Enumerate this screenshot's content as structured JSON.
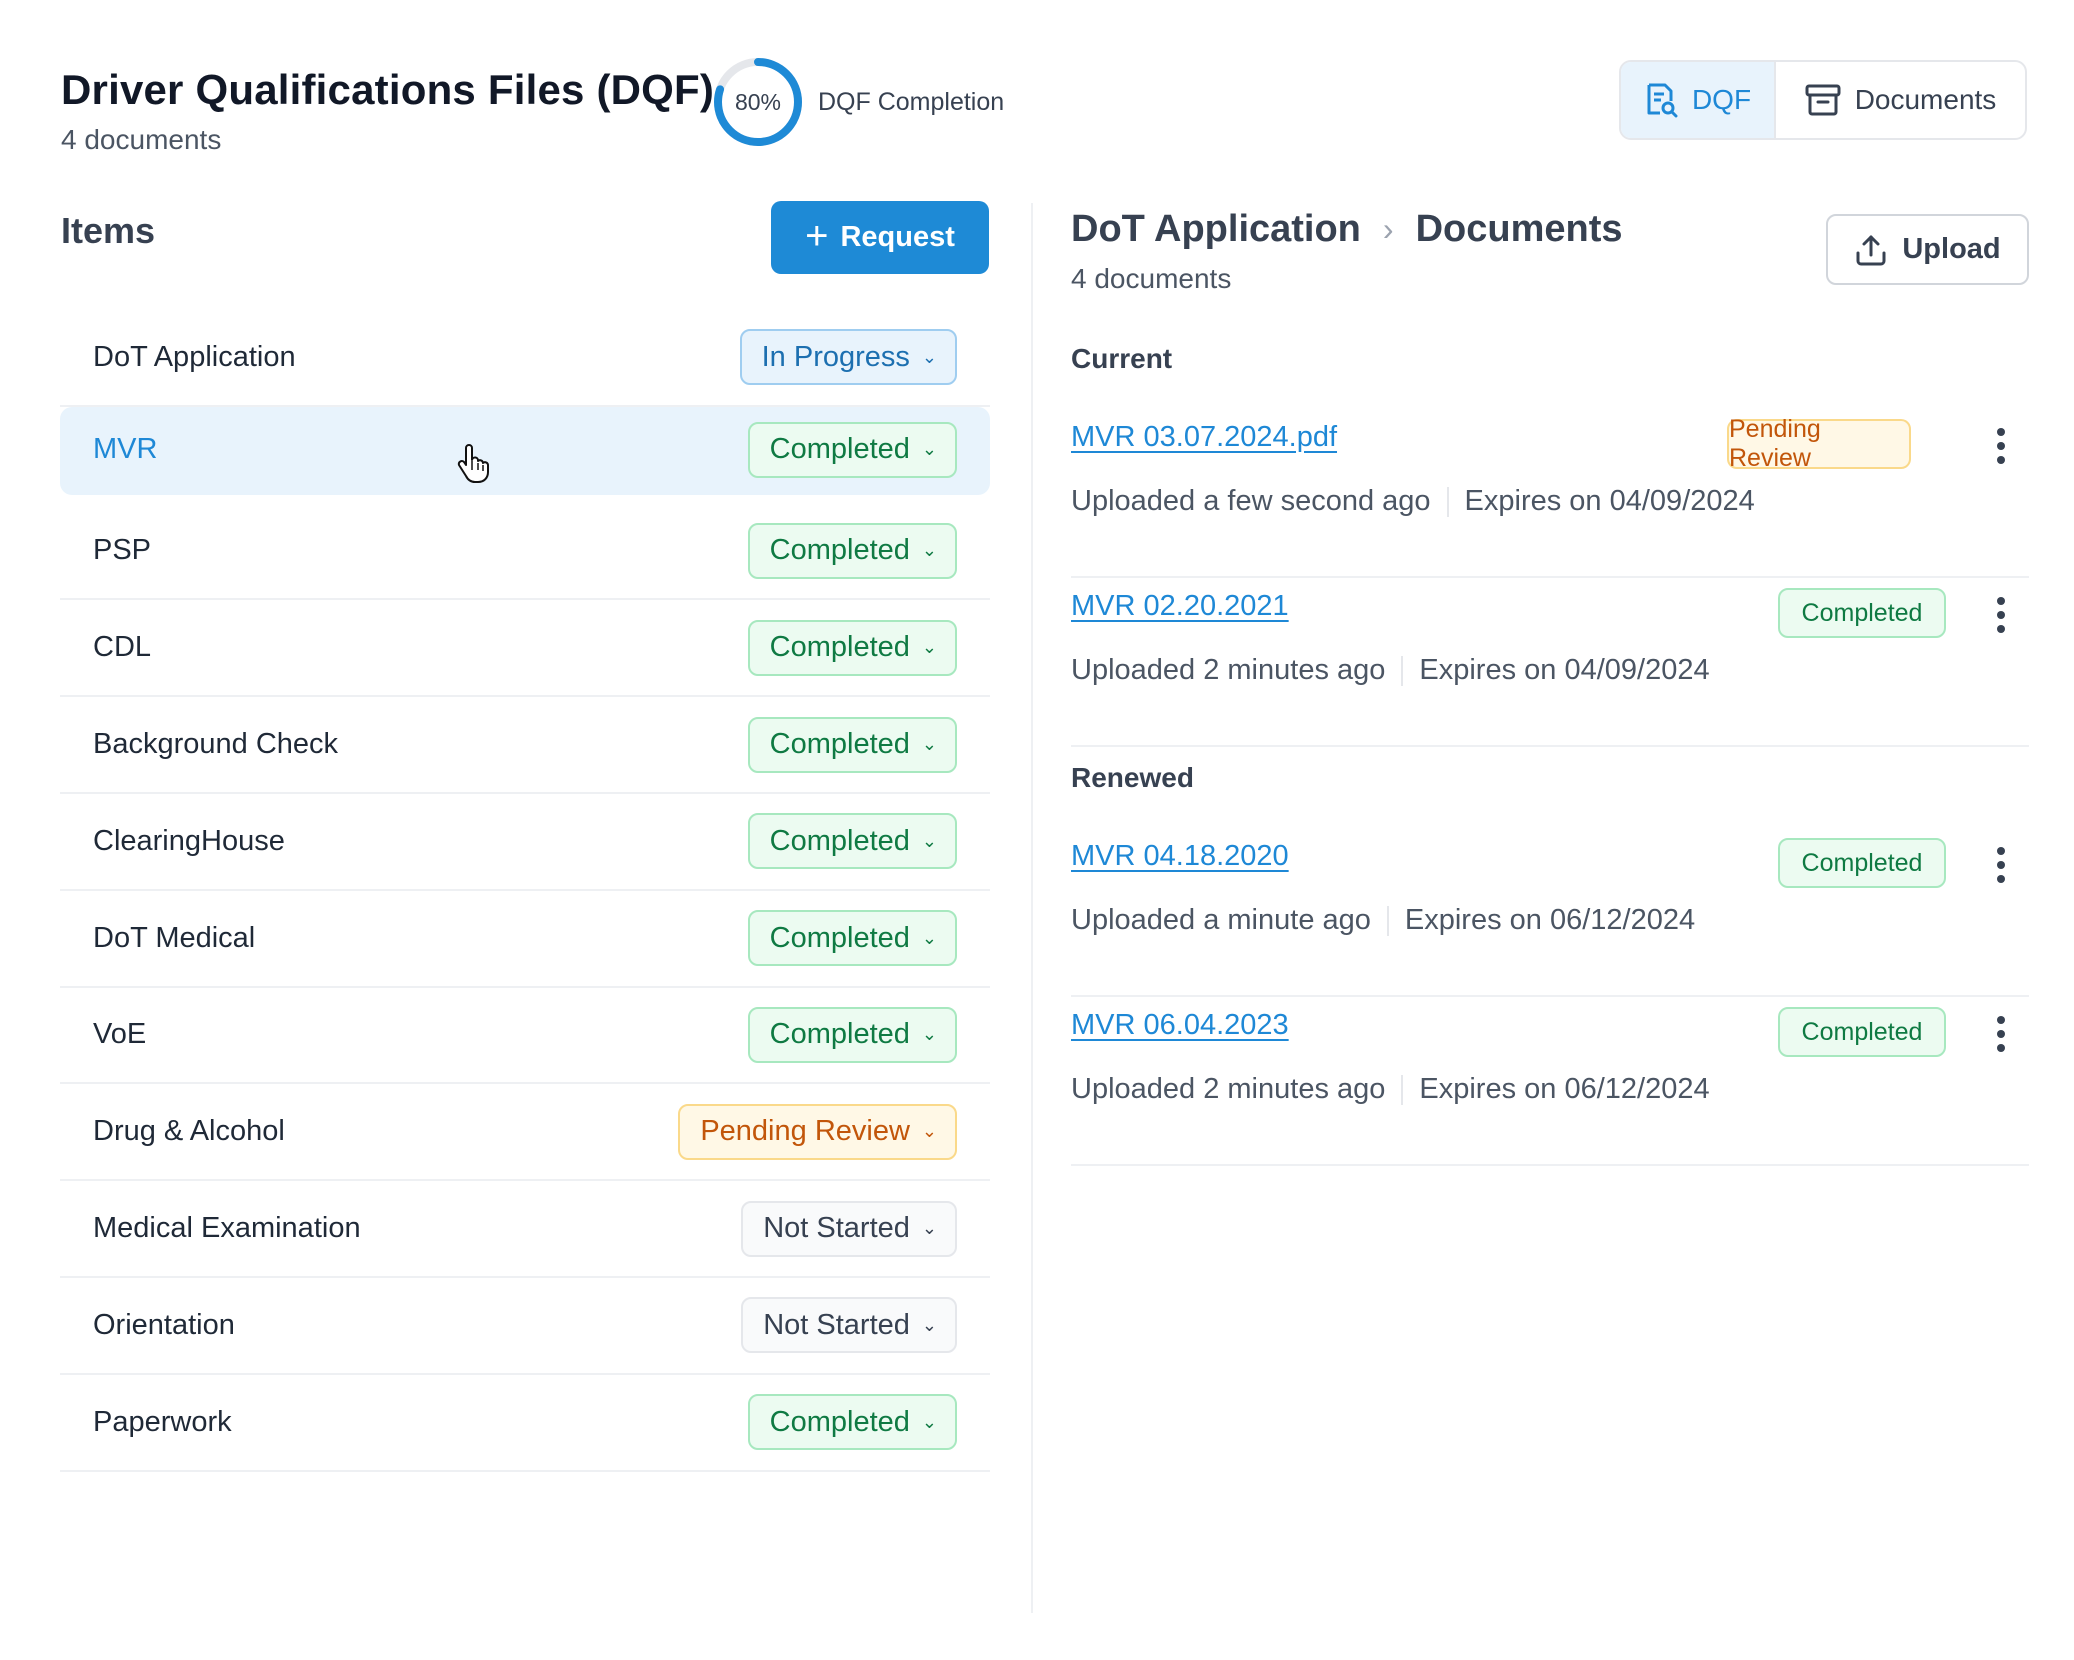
{
  "header": {
    "title": "Driver Qualifications Files (DQF)",
    "subtitle": "4 documents",
    "completion_percent": "80%",
    "completion_value": 0.8,
    "completion_label": "DQF Completion"
  },
  "view_toggle": {
    "dqf_label": "DQF",
    "documents_label": "Documents",
    "active": "DQF"
  },
  "items_panel": {
    "title": "Items",
    "request_label": "Request",
    "items": [
      {
        "name": "DoT Application",
        "status": "In Progress"
      },
      {
        "name": "MVR",
        "status": "Completed"
      },
      {
        "name": "PSP",
        "status": "Completed"
      },
      {
        "name": "CDL",
        "status": "Completed"
      },
      {
        "name": "Background Check",
        "status": "Completed"
      },
      {
        "name": "ClearingHouse",
        "status": "Completed"
      },
      {
        "name": "DoT Medical",
        "status": "Completed"
      },
      {
        "name": "VoE",
        "status": "Completed"
      },
      {
        "name": "Drug & Alcohol",
        "status": "Pending Review"
      },
      {
        "name": "Medical Examination",
        "status": "Not Started"
      },
      {
        "name": "Orientation",
        "status": "Not Started"
      },
      {
        "name": "Paperwork",
        "status": "Completed"
      }
    ]
  },
  "documents_panel": {
    "breadcrumb_parent": "DoT Application",
    "breadcrumb_current": "Documents",
    "count": "4 documents",
    "upload_label": "Upload",
    "current_title": "Current",
    "renewed_title": "Renewed",
    "current": [
      {
        "name": "MVR 03.07.2024.pdf",
        "uploaded": "Uploaded a few second ago",
        "expires": "Expires on 04/09/2024",
        "status": "Pending Review"
      },
      {
        "name": "MVR 02.20.2021",
        "uploaded": "Uploaded 2 minutes ago",
        "expires": "Expires on 04/09/2024",
        "status": "Completed"
      }
    ],
    "renewed": [
      {
        "name": "MVR 04.18.2020",
        "uploaded": "Uploaded a minute ago",
        "expires": "Expires on 06/12/2024",
        "status": "Completed"
      },
      {
        "name": "MVR 06.04.2023",
        "uploaded": "Uploaded 2 minutes ago",
        "expires": "Expires on 06/12/2024",
        "status": "Completed"
      }
    ]
  },
  "colors": {
    "accent": "#1e8ad6",
    "completed": "#0f7a43",
    "pending": "#c2560a",
    "selected_bg": "#e8f3fc"
  }
}
